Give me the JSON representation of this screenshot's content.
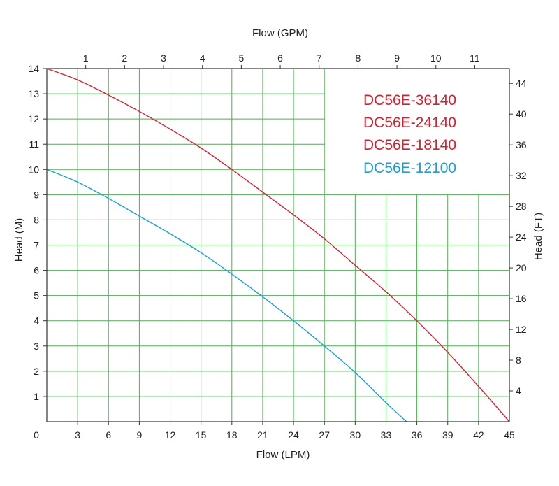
{
  "chart_data": {
    "type": "line",
    "xlabel": "Flow (LPM)",
    "x2label": "Flow (GPM)",
    "ylabel": "Head (M)",
    "y2label": "Head (FT)",
    "xlim": [
      0,
      45
    ],
    "ylim": [
      0,
      14
    ],
    "x2lim": [
      0,
      11.89
    ],
    "y2lim": [
      0,
      45.93
    ],
    "x_ticks": [
      0,
      3,
      6,
      9,
      12,
      15,
      18,
      21,
      24,
      27,
      30,
      33,
      36,
      39,
      42,
      45
    ],
    "y_ticks": [
      1,
      2,
      3,
      4,
      5,
      6,
      7,
      8,
      9,
      10,
      11,
      12,
      13,
      14
    ],
    "x2_ticks": [
      1,
      2,
      3,
      4,
      5,
      6,
      7,
      8,
      9,
      10,
      11
    ],
    "y2_ticks": [
      4,
      8,
      12,
      16,
      20,
      24,
      28,
      32,
      36,
      40,
      44
    ],
    "grid": true,
    "legend_position": "top-right",
    "legend": [
      {
        "label": "DC56E-36140",
        "color": "#d6202f"
      },
      {
        "label": "DC56E-24140",
        "color": "#d6202f"
      },
      {
        "label": "DC56E-18140",
        "color": "#d6202f"
      },
      {
        "label": "DC56E-12100",
        "color": "#1aa0d8"
      }
    ],
    "series": [
      {
        "color": "#d6202f",
        "x": [
          0,
          3,
          6,
          9,
          12,
          15,
          18,
          21,
          24,
          27,
          30,
          33,
          36,
          39,
          42,
          45
        ],
        "y": [
          14.0,
          13.55,
          12.95,
          12.3,
          11.6,
          10.85,
          10.0,
          9.1,
          8.2,
          7.25,
          6.2,
          5.15,
          4.0,
          2.75,
          1.4,
          0.0
        ]
      },
      {
        "color": "#1aa0d8",
        "x": [
          0,
          3,
          6,
          9,
          12,
          15,
          18,
          21,
          24,
          27,
          30,
          33,
          35
        ],
        "y": [
          10.0,
          9.5,
          8.85,
          8.15,
          7.45,
          6.7,
          5.85,
          4.95,
          4.0,
          3.0,
          1.95,
          0.75,
          0.0
        ]
      }
    ]
  }
}
